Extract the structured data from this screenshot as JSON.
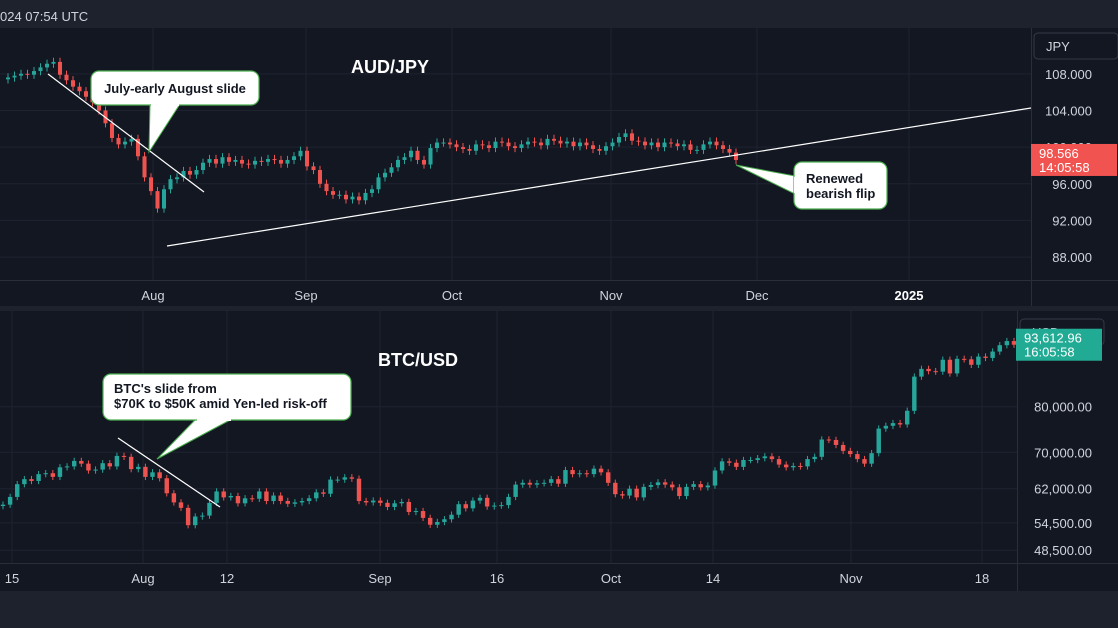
{
  "header": {
    "timestamp": "024 07:54 UTC"
  },
  "chart_data": [
    {
      "type": "candlestick",
      "title": "AUD/JPY",
      "currency_label": "JPY",
      "x_ticks": [
        "Aug",
        "Sep",
        "Oct",
        "Nov",
        "Dec",
        "2025"
      ],
      "y_ticks": [
        "108.000",
        "104.000",
        "100.000",
        "96.000",
        "92.000",
        "88.000"
      ],
      "ylim": [
        85.5,
        113
      ],
      "price_badge": {
        "value": "98.566",
        "time": "14:05:58",
        "color": "#f05350"
      },
      "annotations": [
        {
          "text": "July-early August slide"
        },
        {
          "text_line1": "Renewed",
          "text_line2": "bearish flip"
        }
      ],
      "trendlines": [
        "descending resistance Jul–Aug",
        "ascending support Aug–Dec"
      ],
      "closes": [
        107.6,
        107.8,
        108.0,
        107.9,
        108.3,
        108.7,
        109.1,
        109.3,
        107.9,
        107.3,
        106.6,
        106.1,
        105.5,
        104.9,
        104.0,
        102.6,
        101.0,
        100.3,
        100.6,
        100.9,
        99.0,
        96.7,
        95.2,
        93.3,
        95.4,
        96.5,
        96.7,
        97.4,
        97.0,
        97.5,
        98.3,
        98.7,
        98.2,
        98.9,
        98.4,
        98.6,
        98.2,
        98.1,
        98.5,
        98.4,
        98.7,
        98.6,
        98.2,
        98.6,
        99.0,
        99.6,
        97.9,
        97.5,
        96.0,
        95.2,
        94.8,
        94.8,
        94.3,
        94.6,
        94.2,
        95.0,
        95.4,
        96.7,
        97.2,
        97.8,
        98.6,
        98.9,
        99.6,
        98.6,
        98.1,
        99.9,
        100.5,
        100.5,
        100.3,
        100.0,
        99.8,
        99.6,
        100.3,
        100.2,
        99.9,
        100.6,
        100.5,
        100.1,
        99.9,
        100.3,
        100.6,
        100.5,
        100.2,
        100.9,
        100.7,
        100.4,
        100.6,
        100.1,
        100.5,
        100.2,
        99.8,
        99.6,
        100.1,
        100.5,
        101.1,
        101.5,
        100.7,
        100.6,
        100.2,
        100.5,
        100.0,
        100.5,
        100.4,
        100.1,
        100.3,
        99.7,
        99.7,
        100.3,
        100.6,
        100.2,
        99.8,
        99.4,
        98.6
      ],
      "y_dates": [
        "2024-07-04",
        "2024-11-27"
      ]
    },
    {
      "type": "candlestick",
      "title": "BTC/USD",
      "currency_label": "USD",
      "x_ticks": [
        "15",
        "Aug",
        "12",
        "Sep",
        "16",
        "Oct",
        "14",
        "Nov",
        "18"
      ],
      "y_ticks": [
        "80,000.00",
        "70,000.00",
        "62,000.00",
        "54,500.00",
        "48,500.00"
      ],
      "ylim": [
        45700,
        101000
      ],
      "price_badge": {
        "value": "93,612.96",
        "time": "16:05:58",
        "color": "#22ab94"
      },
      "annotations": [
        {
          "text_line1": "BTC's slide from",
          "text_line2": "$70K to $50K amid Yen-led risk-off"
        }
      ],
      "trendlines": [
        "descending Jul–Aug"
      ],
      "closes": [
        58500,
        60200,
        63000,
        64100,
        63700,
        65200,
        65400,
        64600,
        66700,
        66900,
        68100,
        67500,
        66000,
        66200,
        67600,
        66900,
        69200,
        69000,
        66300,
        66800,
        64600,
        65600,
        64300,
        61000,
        59000,
        57800,
        54000,
        55900,
        56100,
        58900,
        61400,
        60100,
        60400,
        58800,
        59900,
        59800,
        61400,
        59300,
        60500,
        59300,
        58700,
        59000,
        59300,
        59900,
        61200,
        60900,
        64000,
        64000,
        64500,
        64200,
        59300,
        59000,
        59400,
        58900,
        58000,
        58800,
        59100,
        56900,
        57100,
        55600,
        54100,
        54700,
        55300,
        56300,
        58600,
        57700,
        59400,
        60000,
        58100,
        58300,
        58400,
        60200,
        62900,
        63300,
        62900,
        63200,
        63300,
        64100,
        63100,
        66100,
        65200,
        65400,
        65200,
        66400,
        65600,
        63300,
        60800,
        60500,
        62000,
        60100,
        62400,
        62800,
        63400,
        62900,
        62300,
        60400,
        62400,
        63000,
        62300,
        62700,
        66000,
        68000,
        67700,
        66800,
        68300,
        68300,
        68700,
        69100,
        68500,
        67300,
        66700,
        67000,
        66900,
        68500,
        69000,
        72800,
        72700,
        71600,
        70300,
        69600,
        68500,
        67500,
        69800,
        75200,
        75800,
        76400,
        76100,
        79100,
        86600,
        88300,
        87800,
        87700,
        90300,
        87300,
        90500,
        90400,
        89200,
        91000,
        90700,
        92100,
        93500,
        94400,
        93600
      ],
      "y_dates": [
        "2024-07-08",
        "2024-11-20"
      ]
    }
  ]
}
